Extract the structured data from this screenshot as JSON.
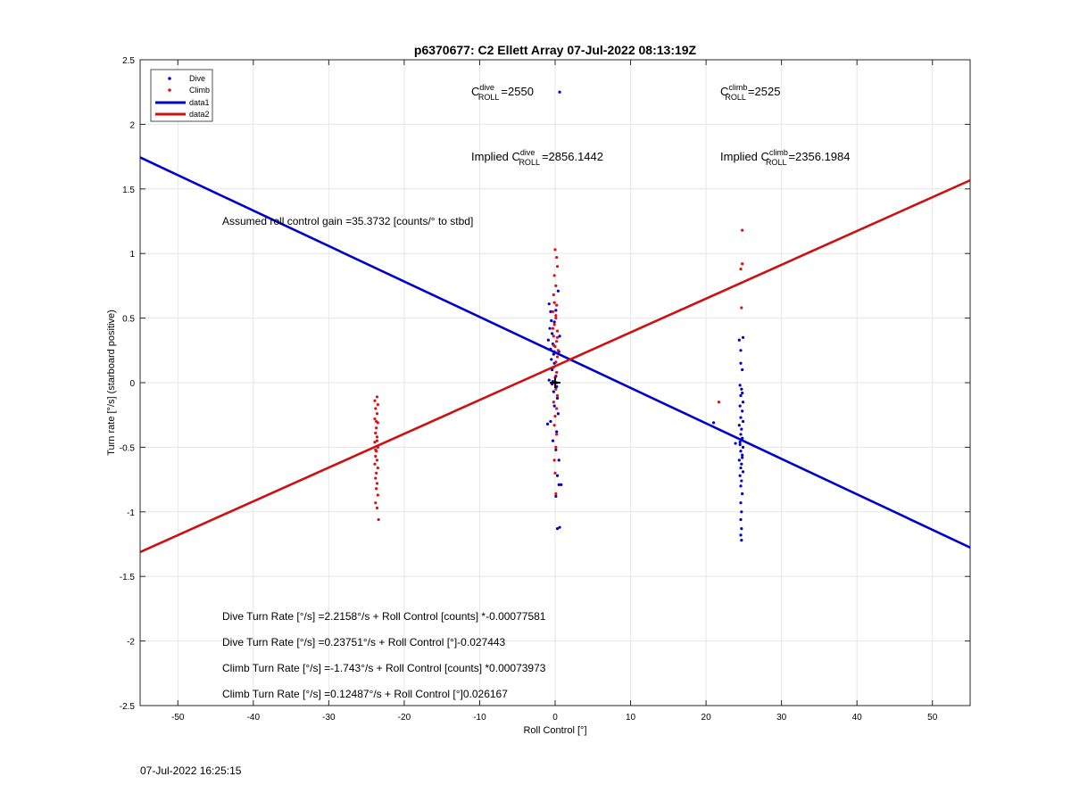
{
  "footer_timestamp": "07-Jul-2022 16:25:15",
  "chart_data": {
    "type": "scatter",
    "title": "p6370677: C2 Ellett Array 07-Jul-2022 08:13:19Z",
    "xlabel": "Roll Control [°]",
    "ylabel": "Turn rate [°/s] (starboard positive)",
    "xlim": [
      -55,
      55
    ],
    "ylim": [
      -2.5,
      2.5
    ],
    "x_ticks": [
      -50,
      -40,
      -30,
      -20,
      -10,
      0,
      10,
      20,
      30,
      40,
      50
    ],
    "y_ticks": [
      -2.5,
      -2,
      -1.5,
      -1,
      -0.5,
      0,
      0.5,
      1,
      1.5,
      2,
      2.5
    ],
    "grid": true,
    "legend": {
      "placement": "top-left",
      "entries": [
        {
          "label": "Dive",
          "kind": "marker",
          "color": "#0000cc"
        },
        {
          "label": "Climb",
          "kind": "marker",
          "color": "#dd1111"
        },
        {
          "label": "data1",
          "kind": "line",
          "color": "#0000cc"
        },
        {
          "label": "data2",
          "kind": "line",
          "color": "#cc1111"
        }
      ]
    },
    "colors": {
      "dive": "#0000cc",
      "climb": "#dd1111",
      "dive_line": "#0000cc",
      "climb_line": "#cc1111",
      "grid": "#e6e6e6"
    },
    "series": [
      {
        "name": "Dive",
        "kind": "points",
        "color": "#0000cc",
        "points": [
          [
            -0.8,
            0.61
          ],
          [
            -0.6,
            0.55
          ],
          [
            -0.5,
            0.48
          ],
          [
            -0.7,
            0.42
          ],
          [
            -0.4,
            0.38
          ],
          [
            -0.9,
            0.33
          ],
          [
            -0.3,
            0.3
          ],
          [
            -0.6,
            0.26
          ],
          [
            -0.2,
            0.22
          ],
          [
            -0.5,
            0.18
          ],
          [
            -0.1,
            0.15
          ],
          [
            -0.4,
            0.1
          ],
          [
            0.1,
            0.05
          ],
          [
            -0.3,
            0.01
          ],
          [
            0.2,
            -0.03
          ],
          [
            -0.2,
            -0.07
          ],
          [
            0.3,
            -0.12
          ],
          [
            -0.1,
            -0.18
          ],
          [
            0.4,
            -0.24
          ],
          [
            -0.6,
            -0.3
          ],
          [
            -1.0,
            -0.32
          ],
          [
            0.2,
            -0.38
          ],
          [
            -0.3,
            -0.45
          ],
          [
            0.1,
            -0.52
          ],
          [
            0.5,
            -0.6
          ],
          [
            0.3,
            -0.72
          ],
          [
            0.5,
            -0.79
          ],
          [
            0.8,
            -0.79
          ],
          [
            0.1,
            -0.88
          ],
          [
            0.3,
            -1.13
          ],
          [
            0.6,
            -1.12
          ],
          [
            0.4,
            0.71
          ],
          [
            0.1,
            0.56
          ],
          [
            -0.1,
            0.47
          ],
          [
            0.6,
            0.36
          ],
          [
            0.5,
            0.24
          ],
          [
            0.6,
            2.25
          ],
          [
            0.2,
            0.0
          ],
          [
            -0.4,
            -0.01
          ],
          [
            -0.8,
            0.02
          ],
          [
            21.0,
            -0.31
          ],
          [
            23.9,
            -0.47
          ],
          [
            24.4,
            0.33
          ],
          [
            24.9,
            0.35
          ],
          [
            24.6,
            0.25
          ],
          [
            24.8,
            0.1
          ],
          [
            24.5,
            -0.02
          ],
          [
            24.7,
            -0.05
          ],
          [
            24.6,
            -0.1
          ],
          [
            24.9,
            -0.15
          ],
          [
            24.5,
            -0.18
          ],
          [
            24.8,
            -0.22
          ],
          [
            24.6,
            -0.27
          ],
          [
            24.9,
            -0.3
          ],
          [
            24.4,
            -0.33
          ],
          [
            24.7,
            -0.36
          ],
          [
            24.6,
            -0.4
          ],
          [
            24.8,
            -0.43
          ],
          [
            24.5,
            -0.46
          ],
          [
            24.9,
            -0.5
          ],
          [
            24.6,
            -0.53
          ],
          [
            24.8,
            -0.56
          ],
          [
            24.4,
            -0.6
          ],
          [
            24.7,
            -0.63
          ],
          [
            24.6,
            -0.66
          ],
          [
            24.9,
            -0.69
          ],
          [
            24.5,
            -0.72
          ],
          [
            24.7,
            -0.76
          ],
          [
            24.6,
            -0.8
          ],
          [
            24.8,
            -0.86
          ],
          [
            24.6,
            -0.93
          ],
          [
            24.7,
            -1.0
          ],
          [
            24.6,
            -1.06
          ],
          [
            24.7,
            -1.13
          ],
          [
            24.6,
            -1.18
          ],
          [
            24.7,
            -1.22
          ],
          [
            24.6,
            0.15
          ],
          [
            24.8,
            -0.08
          ],
          [
            24.5,
            -0.48
          ],
          [
            24.8,
            -0.58
          ]
        ]
      },
      {
        "name": "Climb",
        "kind": "points",
        "color": "#dd1111",
        "points": [
          [
            -23.6,
            -0.11
          ],
          [
            -23.9,
            -0.14
          ],
          [
            -23.5,
            -0.17
          ],
          [
            -23.8,
            -0.2
          ],
          [
            -23.6,
            -0.24
          ],
          [
            -23.9,
            -0.28
          ],
          [
            -23.5,
            -0.31
          ],
          [
            -23.7,
            -0.35
          ],
          [
            -23.8,
            -0.39
          ],
          [
            -23.6,
            -0.42
          ],
          [
            -23.9,
            -0.46
          ],
          [
            -23.5,
            -0.5
          ],
          [
            -23.7,
            -0.53
          ],
          [
            -23.8,
            -0.57
          ],
          [
            -23.6,
            -0.6
          ],
          [
            -23.9,
            -0.63
          ],
          [
            -23.5,
            -0.66
          ],
          [
            -23.7,
            -0.7
          ],
          [
            -23.8,
            -0.74
          ],
          [
            -23.6,
            -0.78
          ],
          [
            -23.7,
            -0.82
          ],
          [
            -23.5,
            -0.87
          ],
          [
            -23.8,
            -0.93
          ],
          [
            -23.6,
            -0.97
          ],
          [
            -23.4,
            -1.06
          ],
          [
            -23.7,
            -0.3
          ],
          [
            -23.6,
            -0.45
          ],
          [
            -23.8,
            -0.52
          ],
          [
            0.0,
            1.03
          ],
          [
            0.2,
            0.97
          ],
          [
            0.3,
            0.9
          ],
          [
            -0.1,
            0.83
          ],
          [
            0.1,
            0.75
          ],
          [
            -0.2,
            0.68
          ],
          [
            0.2,
            0.6
          ],
          [
            -0.3,
            0.55
          ],
          [
            0.1,
            0.5
          ],
          [
            -0.1,
            0.45
          ],
          [
            0.3,
            0.4
          ],
          [
            -0.2,
            0.36
          ],
          [
            0.2,
            0.32
          ],
          [
            0.0,
            0.28
          ],
          [
            -0.1,
            0.24
          ],
          [
            0.3,
            0.2
          ],
          [
            0.1,
            0.16
          ],
          [
            -0.2,
            0.12
          ],
          [
            0.2,
            0.08
          ],
          [
            0.0,
            0.04
          ],
          [
            -0.1,
            0.0
          ],
          [
            0.1,
            -0.05
          ],
          [
            0.3,
            -0.1
          ],
          [
            -0.2,
            -0.15
          ],
          [
            0.2,
            -0.2
          ],
          [
            0.0,
            -0.26
          ],
          [
            -0.1,
            -0.33
          ],
          [
            0.2,
            -0.4
          ],
          [
            0.1,
            -0.5
          ],
          [
            -0.1,
            -0.6
          ],
          [
            0.0,
            -0.7
          ],
          [
            0.1,
            -0.86
          ],
          [
            -0.3,
            0.42
          ],
          [
            0.3,
            0.35
          ],
          [
            -0.2,
            0.29
          ],
          [
            0.4,
            0.25
          ],
          [
            0.1,
            0.52
          ],
          [
            -0.1,
            0.62
          ],
          [
            21.7,
            -0.15
          ],
          [
            24.7,
            0.58
          ],
          [
            24.6,
            0.88
          ],
          [
            24.8,
            0.92
          ],
          [
            24.8,
            1.18
          ]
        ]
      },
      {
        "name": "data1",
        "kind": "line",
        "color": "#0000cc",
        "points": [
          [
            -55,
            1.7442
          ],
          [
            55,
            -1.276
          ]
        ]
      },
      {
        "name": "data2",
        "kind": "line",
        "color": "#cc1111",
        "points": [
          [
            -55,
            -1.3115
          ],
          [
            55,
            1.5668
          ]
        ]
      }
    ],
    "origin_marker": [
      0,
      0
    ],
    "annotations": {
      "c_dive": {
        "prefix": "C",
        "sup": "dive",
        "sub": "ROLL",
        "value": "=2550"
      },
      "c_climb": {
        "prefix": "C",
        "sup": "climb",
        "sub": "ROLL",
        "value": "=2525"
      },
      "implied_dive": {
        "prefix": "Implied C",
        "sup": "dive",
        "sub": "ROLL",
        "value": "=2856.1442"
      },
      "implied_climb": {
        "prefix": "Implied C",
        "sup": "climb",
        "sub": "ROLL",
        "value": "=2356.1984"
      },
      "gain": "Assumed roll control gain =35.3732 [counts/° to stbd]",
      "fits": [
        "Dive Turn Rate [°/s] =2.2158°/s + Roll Control [counts] *-0.00077581",
        "Dive Turn Rate [°/s] =0.23751°/s + Roll Control [°]-0.027443",
        "Climb Turn Rate [°/s] =-1.743°/s + Roll Control [counts] *0.00073973",
        "Climb Turn Rate [°/s] =0.12487°/s + Roll Control [°]0.026167"
      ]
    }
  }
}
